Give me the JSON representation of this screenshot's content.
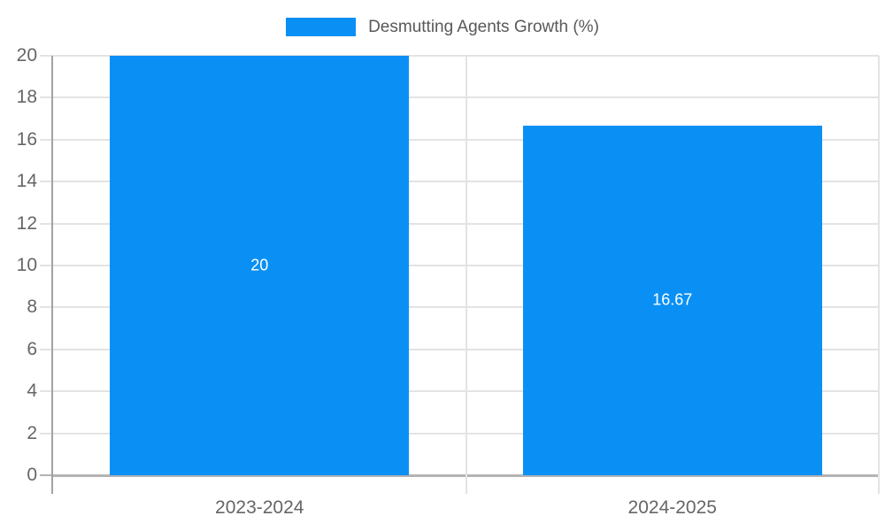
{
  "chart_data": {
    "type": "bar",
    "title": "Desmutting Agents Growth (%)",
    "categories": [
      "2023-2024",
      "2024-2025"
    ],
    "values": [
      20,
      16.67
    ],
    "value_labels": [
      "20",
      "16.67"
    ],
    "ylabel": "",
    "xlabel": "",
    "ylim": [
      0,
      20
    ],
    "ytick_step": 2,
    "grid": true,
    "legend_position": "top",
    "colors": {
      "bar": "#0a90f5",
      "grid": "#e3e3e3",
      "axis": "#a3a3a3",
      "baseline": "#b3b3b3",
      "tick_label": "#666666",
      "title": "#595959",
      "value_label": "#ffffff"
    }
  }
}
